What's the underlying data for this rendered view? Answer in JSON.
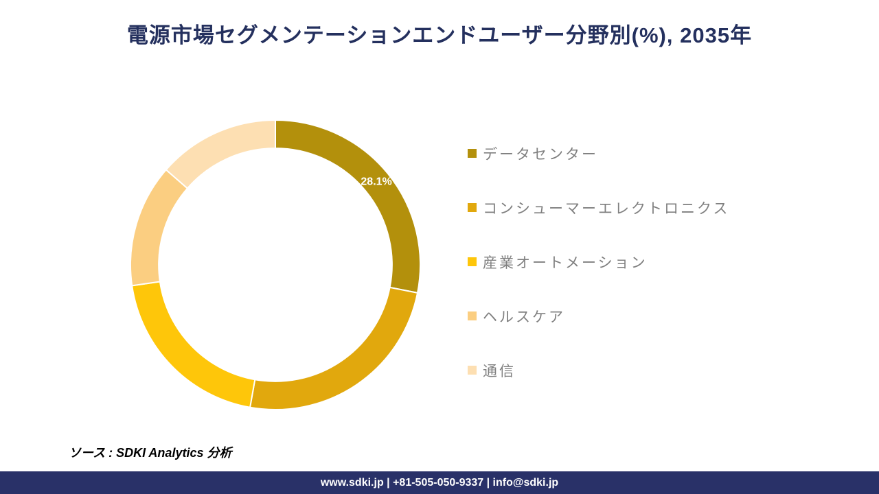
{
  "title": "電源市場セグメンテーションエンドユーザー分野別(%), 2035年",
  "title_color": "#24305E",
  "chart_data": {
    "type": "pie",
    "subtype": "donut",
    "title": "電源市場セグメンテーションエンドユーザー分野別(%), 2035年",
    "categories": [
      "データセンター",
      "コンシューマーエレクトロニクス",
      "産業オートメーション",
      "ヘルスケア",
      "通信"
    ],
    "values": [
      28.1,
      24.7,
      19.9,
      13.7,
      13.6
    ],
    "colors": [
      "#B3900C",
      "#E1A80D",
      "#FEC60A",
      "#FBCE81",
      "#FDDFB2"
    ],
    "data_labels": [
      "28.1%",
      "",
      "",
      "",
      ""
    ],
    "data_label_color": "#FFFFFF",
    "start_angle_deg": 0,
    "direction": "clockwise",
    "inner_radius_ratio": 0.805,
    "slice_gap_color": "#FFFFFF",
    "legend_position": "right",
    "legend_text_color": "#7F7F7F"
  },
  "source": {
    "text": "ソース : SDKI Analytics 分析"
  },
  "footer": {
    "text": "www.sdki.jp | +81-505-050-9337 | info@sdki.jp",
    "background": "#293168"
  }
}
